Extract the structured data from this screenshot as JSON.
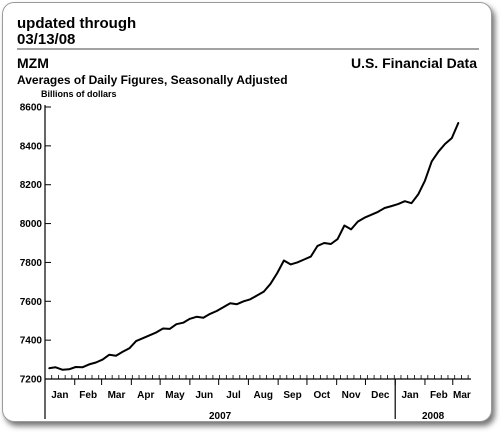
{
  "updated": {
    "line1": "updated through",
    "line2": "03/13/08"
  },
  "chart_data": {
    "type": "line",
    "title": "MZM",
    "source": "U.S. Financial Data",
    "subtitle": "Averages of Daily Figures, Seasonally Adjusted",
    "ylabel": "Billions of dollars",
    "ylim": [
      7200,
      8600
    ],
    "yticks": [
      7200,
      7400,
      7600,
      7800,
      8000,
      8200,
      8400,
      8600
    ],
    "month_labels": [
      "Jan",
      "Feb",
      "Mar",
      "Apr",
      "May",
      "Jun",
      "Jul",
      "Aug",
      "Sep",
      "Oct",
      "Nov",
      "Dec",
      "Jan",
      "Feb",
      "Mar"
    ],
    "year_labels": [
      "2007",
      "2008"
    ],
    "grid": false,
    "legend": "none",
    "line_color": "#000000",
    "series": [
      {
        "x": [
          "2007-01-05",
          "2007-01-12",
          "2007-01-19",
          "2007-01-26",
          "2007-02-02",
          "2007-02-09",
          "2007-02-16",
          "2007-02-23",
          "2007-03-02",
          "2007-03-09",
          "2007-03-16",
          "2007-03-23",
          "2007-03-30",
          "2007-04-06",
          "2007-04-13",
          "2007-04-20",
          "2007-04-27",
          "2007-05-04",
          "2007-05-11",
          "2007-05-18",
          "2007-05-25",
          "2007-06-01",
          "2007-06-08",
          "2007-06-15",
          "2007-06-22",
          "2007-06-29",
          "2007-07-06",
          "2007-07-13",
          "2007-07-20",
          "2007-07-27",
          "2007-08-03",
          "2007-08-10",
          "2007-08-17",
          "2007-08-24",
          "2007-08-31",
          "2007-09-07",
          "2007-09-14",
          "2007-09-21",
          "2007-09-28",
          "2007-10-05",
          "2007-10-12",
          "2007-10-19",
          "2007-10-26",
          "2007-11-02",
          "2007-11-09",
          "2007-11-16",
          "2007-11-23",
          "2007-11-30",
          "2007-12-07",
          "2007-12-14",
          "2007-12-21",
          "2007-12-28",
          "2008-01-04",
          "2008-01-11",
          "2008-01-18",
          "2008-01-25",
          "2008-02-01",
          "2008-02-08",
          "2008-02-15",
          "2008-02-22",
          "2008-02-29",
          "2008-03-07"
        ],
        "values": [
          7255,
          7260,
          7248,
          7250,
          7262,
          7260,
          7275,
          7285,
          7300,
          7325,
          7320,
          7340,
          7358,
          7395,
          7410,
          7425,
          7440,
          7460,
          7458,
          7482,
          7490,
          7510,
          7520,
          7515,
          7535,
          7550,
          7570,
          7590,
          7585,
          7600,
          7610,
          7630,
          7650,
          7690,
          7745,
          7810,
          7790,
          7800,
          7815,
          7830,
          7885,
          7900,
          7895,
          7920,
          7990,
          7970,
          8010,
          8030,
          8045,
          8060,
          8080,
          8090,
          8100,
          8115,
          8105,
          8150,
          8220,
          8320,
          8370,
          8410,
          8440,
          8520
        ]
      }
    ]
  }
}
